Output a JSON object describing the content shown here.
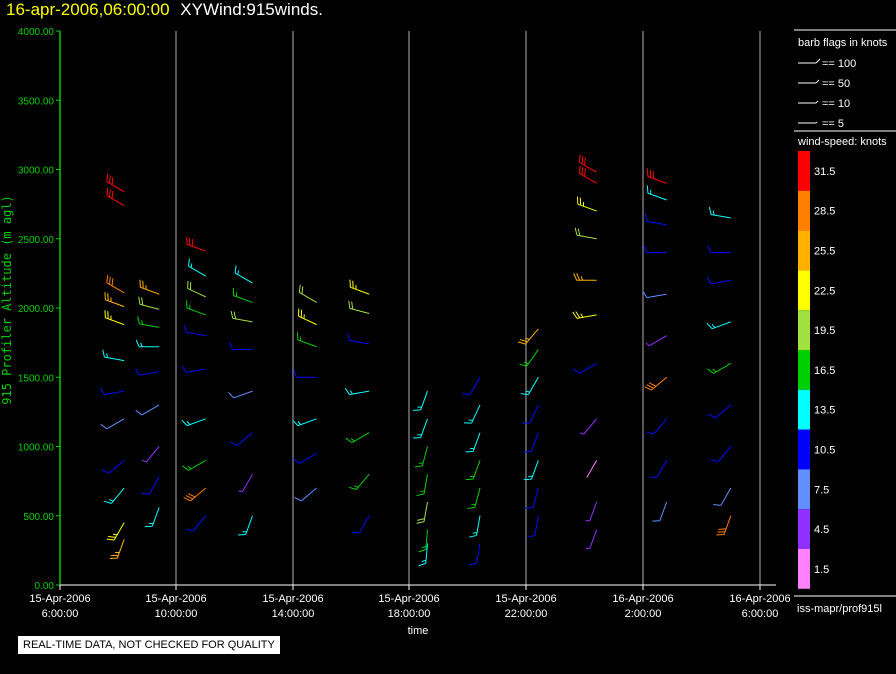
{
  "header": {
    "date": "16-apr-2006,06:00:00",
    "name": "XYWind:915winds."
  },
  "legend_flags": {
    "title": "barb flags in knots",
    "items": [
      "== 100",
      "== 50",
      "== 10",
      "== 5"
    ]
  },
  "legend_speed": {
    "title": "wind-speed: knots",
    "levels": [
      {
        "label": "31.5",
        "color": "#ff0000"
      },
      {
        "label": "28.5",
        "color": "#ff8000"
      },
      {
        "label": "25.5",
        "color": "#ffb000"
      },
      {
        "label": "22.5",
        "color": "#ffff00"
      },
      {
        "label": "19.5",
        "color": "#a0e040"
      },
      {
        "label": "16.5",
        "color": "#00d000"
      },
      {
        "label": "13.5",
        "color": "#00ffff"
      },
      {
        "label": "10.5",
        "color": "#0000ff"
      },
      {
        "label": "7.5",
        "color": "#6090ff"
      },
      {
        "label": "4.5",
        "color": "#9030ff"
      },
      {
        "label": "1.5",
        "color": "#ff80ff"
      }
    ]
  },
  "source_label": "iss-mapr/prof915l",
  "notice": "REAL-TIME DATA, NOT CHECKED FOR QUALITY",
  "chart_data": {
    "type": "wind-barb time-height plot",
    "xlabel": "time",
    "ylabel": "915 Profiler Altitude (m agl)",
    "ylim": [
      0,
      4000
    ],
    "y_ticks": [
      "0.00",
      "500.00",
      "1000.00",
      "1500.00",
      "2000.00",
      "2500.00",
      "3000.00",
      "3500.00",
      "4000.00"
    ],
    "xlim_hours": [
      0,
      24
    ],
    "x_ticks": [
      {
        "hour": 0,
        "date": "15-Apr-2006",
        "time": "6:00:00"
      },
      {
        "hour": 4,
        "date": "15-Apr-2006",
        "time": "10:00:00"
      },
      {
        "hour": 8,
        "date": "15-Apr-2006",
        "time": "14:00:00"
      },
      {
        "hour": 12,
        "date": "15-Apr-2006",
        "time": "18:00:00"
      },
      {
        "hour": 16,
        "date": "15-Apr-2006",
        "time": "22:00:00"
      },
      {
        "hour": 20,
        "date": "16-Apr-2006",
        "time": "2:00:00"
      },
      {
        "hour": 24,
        "date": "16-Apr-2006",
        "time": "6:00:00"
      }
    ],
    "grid": "vertical lines at labeled times",
    "wind_speed_bins_knots": [
      1.5,
      4.5,
      7.5,
      10.5,
      13.5,
      16.5,
      19.5,
      22.5,
      25.5,
      28.5,
      31.5
    ],
    "profiles": [
      {
        "hour": 2.2,
        "points": [
          [
            2840,
            31.5,
            300
          ],
          [
            2740,
            31.5,
            300
          ],
          [
            2110,
            28.5,
            300
          ],
          [
            2010,
            25.5,
            290
          ],
          [
            1880,
            22.5,
            290
          ],
          [
            1620,
            13.5,
            280
          ],
          [
            1400,
            10.5,
            260
          ],
          [
            1200,
            7.5,
            240
          ],
          [
            900,
            10.5,
            230
          ],
          [
            700,
            13.5,
            220
          ],
          [
            450,
            22.5,
            210
          ],
          [
            330,
            25.5,
            200
          ]
        ]
      },
      {
        "hour": 3.4,
        "points": [
          [
            2100,
            25.5,
            290
          ],
          [
            1990,
            19.5,
            285
          ],
          [
            1860,
            16.5,
            280
          ],
          [
            1720,
            13.5,
            270
          ],
          [
            1540,
            10.5,
            260
          ],
          [
            1300,
            7.5,
            240
          ],
          [
            1000,
            4.5,
            220
          ],
          [
            780,
            10.5,
            210
          ],
          [
            560,
            13.5,
            200
          ]
        ]
      },
      {
        "hour": 5.0,
        "points": [
          [
            2410,
            31.5,
            290
          ],
          [
            2230,
            13.5,
            300
          ],
          [
            2080,
            19.5,
            295
          ],
          [
            1950,
            16.5,
            290
          ],
          [
            1800,
            10.5,
            280
          ],
          [
            1560,
            10.5,
            260
          ],
          [
            1200,
            13.5,
            250
          ],
          [
            900,
            16.5,
            240
          ],
          [
            700,
            28.5,
            230
          ],
          [
            500,
            10.5,
            220
          ]
        ]
      },
      {
        "hour": 6.6,
        "points": [
          [
            2180,
            13.5,
            300
          ],
          [
            2040,
            16.5,
            290
          ],
          [
            1900,
            19.5,
            280
          ],
          [
            1700,
            10.5,
            270
          ],
          [
            1400,
            7.5,
            250
          ],
          [
            1100,
            10.5,
            230
          ],
          [
            800,
            4.5,
            210
          ],
          [
            500,
            13.5,
            200
          ]
        ]
      },
      {
        "hour": 8.8,
        "points": [
          [
            2040,
            19.5,
            300
          ],
          [
            1880,
            22.5,
            295
          ],
          [
            1720,
            16.5,
            290
          ],
          [
            1500,
            10.5,
            270
          ],
          [
            1200,
            13.5,
            250
          ],
          [
            950,
            10.5,
            240
          ],
          [
            700,
            7.5,
            230
          ]
        ]
      },
      {
        "hour": 10.6,
        "points": [
          [
            2100,
            22.5,
            290
          ],
          [
            1960,
            19.5,
            285
          ],
          [
            1740,
            10.5,
            280
          ],
          [
            1400,
            13.5,
            260
          ],
          [
            1100,
            16.5,
            240
          ],
          [
            800,
            16.5,
            220
          ],
          [
            500,
            10.5,
            210
          ]
        ]
      },
      {
        "hour": 12.6,
        "points": [
          [
            1400,
            13.5,
            200
          ],
          [
            1200,
            13.5,
            200
          ],
          [
            1000,
            16.5,
            195
          ],
          [
            800,
            16.5,
            190
          ],
          [
            600,
            19.5,
            190
          ],
          [
            400,
            16.5,
            185
          ],
          [
            300,
            13.5,
            185
          ]
        ]
      },
      {
        "hour": 14.4,
        "points": [
          [
            1500,
            10.5,
            210
          ],
          [
            1300,
            13.5,
            205
          ],
          [
            1100,
            13.5,
            200
          ],
          [
            900,
            16.5,
            200
          ],
          [
            700,
            16.5,
            195
          ],
          [
            500,
            13.5,
            190
          ],
          [
            300,
            10.5,
            190
          ]
        ]
      },
      {
        "hour": 16.4,
        "points": [
          [
            1850,
            25.5,
            220
          ],
          [
            1700,
            16.5,
            215
          ],
          [
            1500,
            13.5,
            210
          ],
          [
            1300,
            10.5,
            205
          ],
          [
            1100,
            10.5,
            200
          ],
          [
            900,
            13.5,
            200
          ],
          [
            700,
            10.5,
            195
          ],
          [
            500,
            10.5,
            190
          ]
        ]
      },
      {
        "hour": 18.4,
        "points": [
          [
            2980,
            31.5,
            300
          ],
          [
            2900,
            31.5,
            300
          ],
          [
            2700,
            22.5,
            290
          ],
          [
            2500,
            19.5,
            280
          ],
          [
            2200,
            25.5,
            270
          ],
          [
            1950,
            22.5,
            260
          ],
          [
            1600,
            10.5,
            240
          ],
          [
            1200,
            4.5,
            220
          ],
          [
            900,
            1.5,
            210
          ],
          [
            600,
            4.5,
            200
          ],
          [
            400,
            4.5,
            200
          ]
        ]
      },
      {
        "hour": 20.8,
        "points": [
          [
            2900,
            31.5,
            290
          ],
          [
            2780,
            13.5,
            290
          ],
          [
            2600,
            10.5,
            280
          ],
          [
            2400,
            10.5,
            270
          ],
          [
            2100,
            7.5,
            260
          ],
          [
            1800,
            4.5,
            240
          ],
          [
            1500,
            28.5,
            230
          ],
          [
            1200,
            10.5,
            220
          ],
          [
            900,
            10.5,
            210
          ],
          [
            600,
            7.5,
            200
          ]
        ]
      },
      {
        "hour": 23.0,
        "points": [
          [
            2650,
            13.5,
            280
          ],
          [
            2400,
            10.5,
            270
          ],
          [
            2200,
            10.5,
            260
          ],
          [
            1900,
            13.5,
            250
          ],
          [
            1600,
            16.5,
            240
          ],
          [
            1300,
            10.5,
            230
          ],
          [
            1000,
            10.5,
            220
          ],
          [
            700,
            7.5,
            210
          ],
          [
            500,
            28.5,
            200
          ]
        ]
      }
    ]
  }
}
